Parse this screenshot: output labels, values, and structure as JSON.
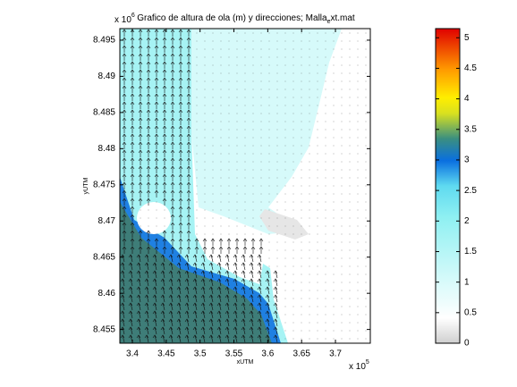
{
  "chart_data": {
    "type": "quiver-map",
    "title": [
      "Grafico de altura de ola (m) y direcciones; Malla",
      "e",
      "xt.mat"
    ],
    "xlabel": "xUTM",
    "ylabel": "yUTM",
    "x_multiplier": {
      "label": "x 10",
      "exponent": 5
    },
    "y_multiplier": {
      "label": "x 10",
      "exponent": 6
    },
    "xlim": [
      3.3815,
      3.7515
    ],
    "ylim": [
      8.4531,
      8.4966
    ],
    "xticks": [
      3.4,
      3.45,
      3.5,
      3.55,
      3.6,
      3.65,
      3.7
    ],
    "yticks": [
      8.455,
      8.46,
      8.465,
      8.47,
      8.475,
      8.48,
      8.485,
      8.49,
      8.495
    ],
    "regions": [
      {
        "value": 0.9,
        "color": "#d6fafa"
      },
      {
        "value": 1.4,
        "color": "#a6f3f4"
      },
      {
        "value": 2.9,
        "color": "#1f80e2"
      },
      {
        "value": 3.4,
        "color": "#3e7d78"
      },
      {
        "value": 0.2,
        "color": "#e6e6e6"
      }
    ],
    "clim": [
      0,
      5.15
    ],
    "colorbar_ticks": [
      0,
      0.5,
      1,
      1.5,
      2,
      2.5,
      3,
      3.5,
      4,
      4.5,
      5
    ]
  }
}
